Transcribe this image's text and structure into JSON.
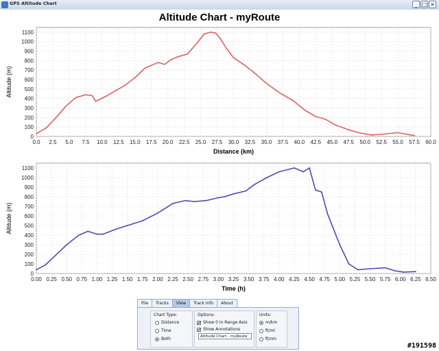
{
  "window": {
    "title": "GPS Altitude Chart",
    "minimize": "_",
    "maximize": "□",
    "close": "×"
  },
  "page_title": "Altitude Chart - myRoute",
  "chart_data": [
    {
      "type": "line",
      "xlabel": "Distance (km)",
      "ylabel": "Altitude (m)",
      "xlim": [
        0,
        60
      ],
      "ylim": [
        0,
        1150
      ],
      "color": "#e06060",
      "xticks": [
        "0.0",
        "2.5",
        "5.0",
        "7.5",
        "10.0",
        "12.5",
        "15.0",
        "17.5",
        "20.0",
        "22.5",
        "25.0",
        "27.5",
        "30.0",
        "32.5",
        "35.0",
        "37.5",
        "40.0",
        "42.5",
        "45.0",
        "47.5",
        "50.0",
        "52.5",
        "55.0",
        "57.5",
        "60.0"
      ],
      "yticks": [
        "0",
        "100",
        "200",
        "300",
        "400",
        "500",
        "600",
        "700",
        "800",
        "900",
        "1000",
        "1100"
      ],
      "x": [
        0.0,
        1.5,
        3.0,
        4.5,
        6.0,
        7.5,
        8.5,
        9.0,
        10.5,
        12.0,
        13.5,
        15.0,
        16.5,
        17.5,
        18.5,
        19.5,
        20.5,
        21.5,
        23.0,
        24.5,
        25.5,
        26.5,
        27.3,
        28.0,
        29.0,
        30.0,
        31.5,
        33.0,
        35.0,
        37.0,
        39.0,
        41.0,
        42.5,
        44.0,
        45.5,
        47.5,
        49.0,
        51.0,
        53.0,
        55.0,
        56.5,
        57.5
      ],
      "y": [
        30,
        90,
        200,
        320,
        410,
        440,
        430,
        370,
        420,
        480,
        540,
        620,
        720,
        750,
        780,
        760,
        810,
        840,
        870,
        990,
        1080,
        1100,
        1090,
        1030,
        920,
        830,
        760,
        680,
        560,
        460,
        380,
        270,
        210,
        180,
        120,
        70,
        40,
        15,
        25,
        40,
        20,
        10
      ]
    },
    {
      "type": "line",
      "xlabel": "Time (h)",
      "ylabel": "Altitude (m)",
      "xlim": [
        0,
        6.5
      ],
      "ylim": [
        0,
        1150
      ],
      "color": "#4a4ab8",
      "xticks": [
        "0.00",
        "0.25",
        "0.50",
        "0.75",
        "1.00",
        "1.25",
        "1.50",
        "1.75",
        "2.00",
        "2.25",
        "2.50",
        "2.75",
        "3.00",
        "3.25",
        "3.50",
        "3.75",
        "4.00",
        "4.25",
        "4.50",
        "4.75",
        "5.00",
        "5.25",
        "5.50",
        "5.75",
        "6.00",
        "6.25",
        "6.50"
      ],
      "yticks": [
        "0",
        "100",
        "200",
        "300",
        "400",
        "500",
        "600",
        "700",
        "800",
        "900",
        "1000",
        "1100"
      ],
      "x": [
        0.0,
        0.15,
        0.3,
        0.5,
        0.7,
        0.85,
        1.0,
        1.1,
        1.3,
        1.5,
        1.75,
        2.0,
        2.25,
        2.45,
        2.6,
        2.8,
        3.0,
        3.1,
        3.25,
        3.45,
        3.6,
        3.8,
        4.0,
        4.25,
        4.4,
        4.5,
        4.6,
        4.7,
        4.8,
        5.0,
        5.15,
        5.3,
        5.5,
        5.75,
        5.9,
        6.05,
        6.25
      ],
      "y": [
        40,
        90,
        180,
        300,
        400,
        440,
        410,
        410,
        460,
        500,
        550,
        630,
        730,
        760,
        750,
        760,
        790,
        800,
        830,
        860,
        930,
        1000,
        1060,
        1100,
        1060,
        1100,
        870,
        850,
        620,
        300,
        100,
        40,
        50,
        60,
        30,
        15,
        20
      ]
    }
  ],
  "controls": {
    "tabs": [
      "File",
      "Tracks",
      "View",
      "Track Info",
      "About"
    ],
    "active_tab": "View",
    "chart_type": {
      "title": "Chart Type:",
      "options": [
        "Distance",
        "Time",
        "Both"
      ],
      "selected": "Both"
    },
    "options": {
      "title": "Options:",
      "show_zero": "Show 0 in Range Axis",
      "show_annotations": "Show Annotations",
      "title_field": "Altitude Chart - myRoute"
    },
    "units": {
      "title": "Units:",
      "options": [
        "m/km",
        "ft/mi",
        "ft/nm"
      ],
      "selected": "m/km"
    }
  },
  "corner_tag": "#191598"
}
